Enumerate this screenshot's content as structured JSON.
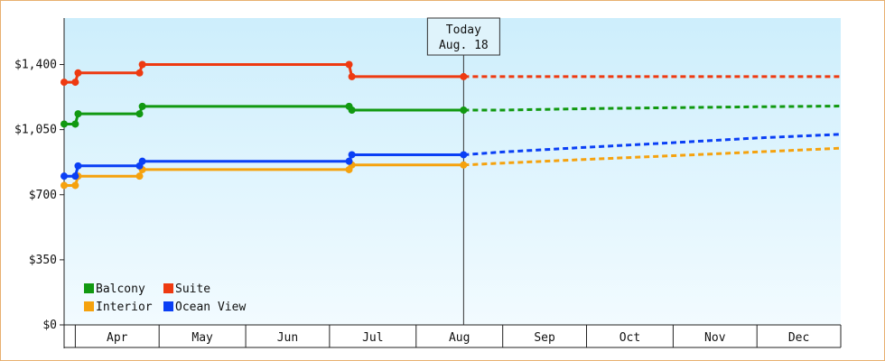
{
  "chart_data": {
    "type": "line",
    "title": "",
    "xlabel": "",
    "ylabel": "",
    "ylim": [
      0,
      1650
    ],
    "yticks": [
      0,
      350,
      700,
      1050,
      1400
    ],
    "ytick_labels": [
      "$0",
      "$350",
      "$700",
      "$1,050",
      "$1,400"
    ],
    "months": [
      "Apr",
      "May",
      "Jun",
      "Jul",
      "Aug",
      "Sep",
      "Oct",
      "Nov",
      "Dec"
    ],
    "x_start": "2024-03-28",
    "x_end": "2024-12-31",
    "grid": false,
    "legend_position": "bottom-left",
    "today": {
      "label": "Today",
      "date_label": "Aug. 18",
      "date": "2024-08-18"
    },
    "series": [
      {
        "name": "Balcony",
        "color": "#119911",
        "historical": [
          [
            "2024-03-28",
            1080
          ],
          [
            "2024-04-01",
            1080
          ],
          [
            "2024-04-02",
            1135
          ],
          [
            "2024-04-24",
            1135
          ],
          [
            "2024-04-25",
            1175
          ],
          [
            "2024-07-08",
            1175
          ],
          [
            "2024-07-09",
            1155
          ],
          [
            "2024-08-18",
            1155
          ]
        ],
        "forecast": [
          [
            "2024-08-18",
            1155
          ],
          [
            "2024-09-01",
            1155
          ],
          [
            "2024-10-01",
            1163
          ],
          [
            "2024-11-01",
            1168
          ],
          [
            "2024-12-01",
            1173
          ],
          [
            "2024-12-31",
            1177
          ]
        ]
      },
      {
        "name": "Suite",
        "color": "#ee3a11",
        "historical": [
          [
            "2024-03-28",
            1305
          ],
          [
            "2024-04-01",
            1305
          ],
          [
            "2024-04-02",
            1355
          ],
          [
            "2024-04-24",
            1355
          ],
          [
            "2024-04-25",
            1400
          ],
          [
            "2024-07-08",
            1400
          ],
          [
            "2024-07-09",
            1335
          ],
          [
            "2024-08-18",
            1335
          ]
        ],
        "forecast": [
          [
            "2024-08-18",
            1335
          ],
          [
            "2024-12-31",
            1335
          ]
        ]
      },
      {
        "name": "Interior",
        "color": "#f5a20e",
        "historical": [
          [
            "2024-03-28",
            750
          ],
          [
            "2024-04-01",
            750
          ],
          [
            "2024-04-02",
            800
          ],
          [
            "2024-04-24",
            800
          ],
          [
            "2024-04-25",
            835
          ],
          [
            "2024-07-08",
            835
          ],
          [
            "2024-07-09",
            860
          ],
          [
            "2024-08-18",
            860
          ]
        ],
        "forecast": [
          [
            "2024-08-18",
            860
          ],
          [
            "2024-09-01",
            870
          ],
          [
            "2024-10-01",
            890
          ],
          [
            "2024-11-01",
            910
          ],
          [
            "2024-12-01",
            930
          ],
          [
            "2024-12-31",
            950
          ]
        ]
      },
      {
        "name": "Ocean View",
        "color": "#0a3ff5",
        "historical": [
          [
            "2024-03-28",
            800
          ],
          [
            "2024-04-01",
            800
          ],
          [
            "2024-04-02",
            855
          ],
          [
            "2024-04-24",
            855
          ],
          [
            "2024-04-25",
            880
          ],
          [
            "2024-07-08",
            880
          ],
          [
            "2024-07-09",
            915
          ],
          [
            "2024-08-18",
            915
          ]
        ],
        "forecast": [
          [
            "2024-08-18",
            915
          ],
          [
            "2024-09-01",
            930
          ],
          [
            "2024-10-01",
            955
          ],
          [
            "2024-11-01",
            980
          ],
          [
            "2024-12-01",
            1005
          ],
          [
            "2024-12-31",
            1025
          ]
        ]
      }
    ]
  }
}
